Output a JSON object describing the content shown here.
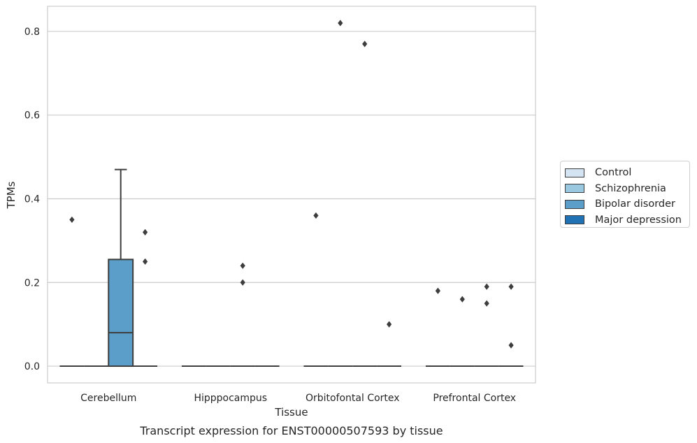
{
  "chart_data": {
    "type": "box",
    "title": "Transcript expression for ENST00000507593 by tissue",
    "xlabel": "Tissue",
    "ylabel": "TPMs",
    "ylim": [
      -0.04,
      0.86
    ],
    "yticks": [
      0.0,
      0.2,
      0.4,
      0.6,
      0.8
    ],
    "ytick_labels": [
      "0.0",
      "0.2",
      "0.4",
      "0.6",
      "0.8"
    ],
    "grid": "horizontal",
    "legend_position": "right",
    "categories": [
      "Cerebellum",
      "Hipppocampus",
      "Orbitofontal Cortex",
      "Prefrontal Cortex"
    ],
    "series": [
      {
        "name": "Control",
        "color": "#d4e4f2",
        "boxes": [
          {
            "q1": 0,
            "median": 0,
            "q3": 0,
            "whisker_low": 0,
            "whisker_high": 0,
            "outliers": [
              0.35
            ]
          },
          {
            "q1": 0,
            "median": 0,
            "q3": 0,
            "whisker_low": 0,
            "whisker_high": 0,
            "outliers": []
          },
          {
            "q1": 0,
            "median": 0,
            "q3": 0,
            "whisker_low": 0,
            "whisker_high": 0,
            "outliers": [
              0.36
            ]
          },
          {
            "q1": 0,
            "median": 0,
            "q3": 0,
            "whisker_low": 0,
            "whisker_high": 0,
            "outliers": [
              0.18
            ]
          }
        ]
      },
      {
        "name": "Schizophrenia",
        "color": "#9ac8e0",
        "boxes": [
          {
            "q1": 0,
            "median": 0,
            "q3": 0,
            "whisker_low": 0,
            "whisker_high": 0,
            "outliers": []
          },
          {
            "q1": 0,
            "median": 0,
            "q3": 0,
            "whisker_low": 0,
            "whisker_high": 0,
            "outliers": []
          },
          {
            "q1": 0,
            "median": 0,
            "q3": 0,
            "whisker_low": 0,
            "whisker_high": 0,
            "outliers": [
              0.82
            ]
          },
          {
            "q1": 0,
            "median": 0,
            "q3": 0,
            "whisker_low": 0,
            "whisker_high": 0,
            "outliers": [
              0.16
            ]
          }
        ]
      },
      {
        "name": "Bipolar disorder",
        "color": "#5a9ec9",
        "boxes": [
          {
            "q1": 0,
            "median": 0.08,
            "q3": 0.255,
            "whisker_low": 0,
            "whisker_high": 0.47,
            "outliers": []
          },
          {
            "q1": 0,
            "median": 0,
            "q3": 0,
            "whisker_low": 0,
            "whisker_high": 0,
            "outliers": [
              0.24,
              0.2
            ]
          },
          {
            "q1": 0,
            "median": 0,
            "q3": 0,
            "whisker_low": 0,
            "whisker_high": 0,
            "outliers": [
              0.77
            ]
          },
          {
            "q1": 0,
            "median": 0,
            "q3": 0,
            "whisker_low": 0,
            "whisker_high": 0,
            "outliers": [
              0.19,
              0.15
            ]
          }
        ]
      },
      {
        "name": "Major depression",
        "color": "#2171b5",
        "boxes": [
          {
            "q1": 0,
            "median": 0,
            "q3": 0,
            "whisker_low": 0,
            "whisker_high": 0,
            "outliers": [
              0.32,
              0.25
            ]
          },
          {
            "q1": 0,
            "median": 0,
            "q3": 0,
            "whisker_low": 0,
            "whisker_high": 0,
            "outliers": []
          },
          {
            "q1": 0,
            "median": 0,
            "q3": 0,
            "whisker_low": 0,
            "whisker_high": 0,
            "outliers": [
              0.1
            ]
          },
          {
            "q1": 0,
            "median": 0,
            "q3": 0,
            "whisker_low": 0,
            "whisker_high": 0,
            "outliers": [
              0.19,
              0.05
            ]
          }
        ]
      }
    ]
  }
}
